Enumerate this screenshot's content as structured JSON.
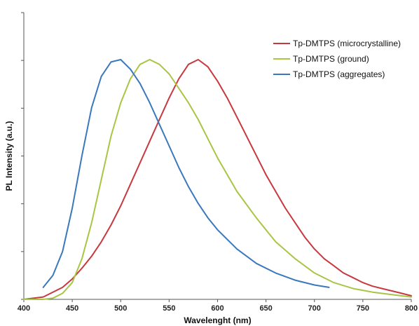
{
  "chart_data": {
    "type": "line",
    "xlabel": "Wavelenght (nm)",
    "ylabel": "PL Intensity (a.u.)",
    "xlim": [
      400,
      800
    ],
    "ylim": [
      0,
      1
    ],
    "xticks": [
      "400",
      "450",
      "500",
      "550",
      "600",
      "650",
      "700",
      "750",
      "800"
    ],
    "y_tick_count": 6,
    "grid": false,
    "legend_position": "top-right",
    "series": [
      {
        "name": "Tp-DMTPS (microcrystalline)",
        "color": "#c8383f",
        "x": [
          400,
          420,
          440,
          450,
          460,
          470,
          480,
          490,
          500,
          510,
          520,
          530,
          540,
          550,
          560,
          570,
          580,
          590,
          600,
          610,
          620,
          630,
          640,
          650,
          660,
          670,
          680,
          690,
          700,
          710,
          720,
          730,
          740,
          750,
          760,
          770,
          780,
          790,
          800
        ],
        "y": [
          0.0,
          0.01,
          0.05,
          0.085,
          0.13,
          0.18,
          0.24,
          0.31,
          0.39,
          0.48,
          0.57,
          0.66,
          0.75,
          0.84,
          0.92,
          0.98,
          1.0,
          0.97,
          0.91,
          0.84,
          0.76,
          0.68,
          0.6,
          0.52,
          0.45,
          0.38,
          0.32,
          0.26,
          0.21,
          0.17,
          0.14,
          0.11,
          0.09,
          0.07,
          0.055,
          0.045,
          0.035,
          0.025,
          0.015
        ]
      },
      {
        "name": "Tp-DMTPS (ground)",
        "color": "#a9c544",
        "x": [
          400,
          420,
          430,
          440,
          450,
          460,
          470,
          480,
          490,
          500,
          510,
          520,
          530,
          540,
          550,
          560,
          570,
          580,
          590,
          600,
          620,
          640,
          660,
          680,
          700,
          720,
          740,
          760,
          780,
          800
        ],
        "y": [
          0.0,
          0.0,
          0.005,
          0.025,
          0.07,
          0.17,
          0.32,
          0.5,
          0.68,
          0.82,
          0.92,
          0.98,
          1.0,
          0.98,
          0.94,
          0.88,
          0.82,
          0.75,
          0.67,
          0.59,
          0.45,
          0.34,
          0.24,
          0.17,
          0.11,
          0.07,
          0.045,
          0.03,
          0.02,
          0.01
        ]
      },
      {
        "name": "Tp-DMTPS (aggregates)",
        "color": "#3a78bd",
        "x": [
          420,
          430,
          440,
          450,
          460,
          470,
          480,
          490,
          500,
          510,
          520,
          530,
          540,
          550,
          560,
          570,
          580,
          590,
          600,
          620,
          640,
          660,
          680,
          700,
          715
        ],
        "y": [
          0.05,
          0.1,
          0.2,
          0.38,
          0.6,
          0.8,
          0.93,
          0.99,
          1.0,
          0.96,
          0.9,
          0.82,
          0.73,
          0.64,
          0.55,
          0.47,
          0.4,
          0.34,
          0.29,
          0.21,
          0.15,
          0.11,
          0.08,
          0.06,
          0.05
        ]
      }
    ]
  }
}
